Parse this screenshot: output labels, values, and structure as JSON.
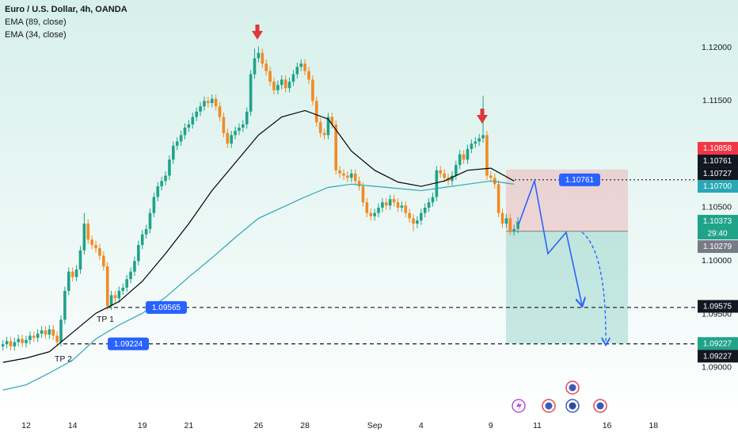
{
  "chart_data": {
    "type": "candlestick",
    "title": "Euro / U.S. Dollar, 4h, OANDA",
    "up_color": "#1fa38a",
    "down_color": "#f08a24",
    "open": [
      1.092,
      1.0922,
      1.0925,
      1.092,
      1.0924,
      1.0927,
      1.0923,
      1.0926,
      1.093,
      1.0928,
      1.0932,
      1.0935,
      1.0931,
      1.0936,
      1.093,
      1.0924,
      1.0945,
      1.0972,
      1.099,
      1.0985,
      1.0992,
      1.101,
      1.1035,
      1.102,
      1.1015,
      1.1012,
      1.1005,
      1.0995,
      1.0958,
      1.0968,
      1.0965,
      1.0972,
      1.0975,
      1.0983,
      1.099,
      1.1,
      1.1015,
      1.1025,
      1.103,
      1.1045,
      1.106,
      1.107,
      1.1075,
      1.108,
      1.1095,
      1.1108,
      1.1112,
      1.1118,
      1.1125,
      1.1128,
      1.1135,
      1.114,
      1.1145,
      1.115,
      1.1148,
      1.1152,
      1.1145,
      1.1135,
      1.112,
      1.111,
      1.1118,
      1.1122,
      1.1125,
      1.1128,
      1.114,
      1.1175,
      1.119,
      1.1195,
      1.1185,
      1.1178,
      1.1168,
      1.116,
      1.1165,
      1.117,
      1.1162,
      1.1168,
      1.1175,
      1.1182,
      1.1185,
      1.1178,
      1.117,
      1.115,
      1.113,
      1.112,
      1.1118,
      1.1135,
      1.1128,
      1.1085,
      1.1082,
      1.108,
      1.1078,
      1.1082,
      1.1075,
      1.107,
      1.1055,
      1.1045,
      1.1042,
      1.1045,
      1.105,
      1.1055,
      1.1052,
      1.1058,
      1.1055,
      1.105,
      1.1052,
      1.1045,
      1.104,
      1.1035,
      1.1038,
      1.1045,
      1.105,
      1.1055,
      1.106,
      1.1085,
      1.1082,
      1.1078,
      1.1075,
      1.108,
      1.109,
      1.11,
      1.1095,
      1.1105,
      1.111,
      1.1112,
      1.1115,
      1.1118,
      1.108,
      1.1078,
      1.1072,
      1.1045,
      1.1035,
      1.104,
      1.1028,
      1.103
    ],
    "high": [
      1.0926,
      1.0929,
      1.0929,
      1.0928,
      1.0931,
      1.0931,
      1.093,
      1.0934,
      1.0934,
      1.0936,
      1.0939,
      1.0939,
      1.094,
      1.094,
      1.0934,
      1.0949,
      1.0976,
      1.0994,
      1.0994,
      1.0996,
      1.1014,
      1.1045,
      1.1039,
      1.1024,
      1.1019,
      1.1016,
      1.1009,
      1.0999,
      1.0972,
      1.0972,
      1.0976,
      1.0979,
      1.0987,
      1.0994,
      1.1004,
      1.1019,
      1.1029,
      1.1034,
      1.1049,
      1.1064,
      1.1074,
      1.1079,
      1.1084,
      1.1099,
      1.1112,
      1.1116,
      1.1122,
      1.1129,
      1.1132,
      1.1139,
      1.1144,
      1.1149,
      1.1154,
      1.1154,
      1.1156,
      1.1156,
      1.1149,
      1.1139,
      1.1124,
      1.1122,
      1.1126,
      1.1129,
      1.1132,
      1.1144,
      1.1179,
      1.1199,
      1.1201,
      1.1199,
      1.1189,
      1.1182,
      1.1172,
      1.1169,
      1.1174,
      1.1174,
      1.1172,
      1.1179,
      1.1186,
      1.1189,
      1.1189,
      1.1182,
      1.1174,
      1.1154,
      1.1134,
      1.1124,
      1.1139,
      1.1139,
      1.1132,
      1.1089,
      1.1086,
      1.1084,
      1.1086,
      1.1086,
      1.1079,
      1.1074,
      1.1059,
      1.1049,
      1.1049,
      1.1054,
      1.1059,
      1.1059,
      1.1062,
      1.1062,
      1.1059,
      1.1056,
      1.1056,
      1.1049,
      1.1044,
      1.1042,
      1.1049,
      1.1054,
      1.1059,
      1.1064,
      1.1089,
      1.1089,
      1.1086,
      1.1082,
      1.1084,
      1.1094,
      1.1104,
      1.1104,
      1.1109,
      1.1114,
      1.1116,
      1.1119,
      1.1155,
      1.1122,
      1.1084,
      1.1082,
      1.1076,
      1.1049,
      1.1044,
      1.1044,
      1.1034,
      1.1041
    ],
    "low": [
      1.0916,
      1.0918,
      1.0916,
      1.0916,
      1.092,
      1.0919,
      1.0919,
      1.0922,
      1.0924,
      1.0924,
      1.0928,
      1.0927,
      1.0927,
      1.0926,
      1.092,
      1.092,
      1.0941,
      1.0968,
      1.0981,
      1.0981,
      1.0988,
      1.1006,
      1.1016,
      1.1011,
      1.1008,
      1.1001,
      1.0991,
      1.0954,
      1.0954,
      1.0961,
      1.0961,
      1.0968,
      1.0971,
      1.0979,
      1.0986,
      1.0996,
      1.1011,
      1.1021,
      1.1026,
      1.1041,
      1.1056,
      1.1066,
      1.1071,
      1.1076,
      1.1091,
      1.1104,
      1.1108,
      1.1114,
      1.1121,
      1.1124,
      1.1131,
      1.1136,
      1.1141,
      1.1144,
      1.1144,
      1.1141,
      1.1131,
      1.1116,
      1.1106,
      1.1106,
      1.1114,
      1.1118,
      1.1121,
      1.1124,
      1.1136,
      1.1171,
      1.1186,
      1.1181,
      1.1174,
      1.1164,
      1.1156,
      1.1156,
      1.1161,
      1.1158,
      1.1158,
      1.1164,
      1.1171,
      1.1178,
      1.1174,
      1.1166,
      1.1146,
      1.1126,
      1.1116,
      1.1114,
      1.1114,
      1.1124,
      1.1081,
      1.1078,
      1.1076,
      1.1074,
      1.1074,
      1.1071,
      1.1066,
      1.1051,
      1.1041,
      1.1038,
      1.1038,
      1.1041,
      1.1046,
      1.1048,
      1.1048,
      1.1051,
      1.1046,
      1.1046,
      1.1041,
      1.1036,
      1.1028,
      1.1031,
      1.1034,
      1.1041,
      1.1046,
      1.1051,
      1.1056,
      1.1078,
      1.1074,
      1.1071,
      1.1071,
      1.1076,
      1.1086,
      1.1091,
      1.1091,
      1.1101,
      1.1106,
      1.1108,
      1.1111,
      1.1076,
      1.1074,
      1.1068,
      1.1041,
      1.1031,
      1.1031,
      1.1024,
      1.1024,
      1.1026
    ],
    "close": [
      1.0922,
      1.0925,
      1.092,
      1.0924,
      1.0927,
      1.0923,
      1.0926,
      1.093,
      1.0928,
      1.0932,
      1.0935,
      1.0931,
      1.0936,
      1.093,
      1.0924,
      1.0945,
      1.0972,
      1.099,
      1.0985,
      1.0992,
      1.101,
      1.1035,
      1.102,
      1.1015,
      1.1012,
      1.1005,
      1.0995,
      1.0958,
      1.0968,
      1.0965,
      1.0972,
      1.0975,
      1.0983,
      1.099,
      1.1,
      1.1015,
      1.1025,
      1.103,
      1.1045,
      1.106,
      1.107,
      1.1075,
      1.108,
      1.1095,
      1.1108,
      1.1112,
      1.1118,
      1.1125,
      1.1128,
      1.1135,
      1.114,
      1.1145,
      1.115,
      1.1148,
      1.1152,
      1.1145,
      1.1135,
      1.112,
      1.111,
      1.1118,
      1.1122,
      1.1125,
      1.1128,
      1.114,
      1.1175,
      1.119,
      1.1195,
      1.1185,
      1.1178,
      1.1168,
      1.116,
      1.1165,
      1.117,
      1.1162,
      1.1168,
      1.1175,
      1.1182,
      1.1185,
      1.1178,
      1.117,
      1.115,
      1.113,
      1.112,
      1.1118,
      1.1135,
      1.1128,
      1.1085,
      1.1082,
      1.108,
      1.1078,
      1.1082,
      1.1075,
      1.107,
      1.1055,
      1.1045,
      1.1042,
      1.1045,
      1.105,
      1.1055,
      1.1052,
      1.1058,
      1.1055,
      1.105,
      1.1052,
      1.1045,
      1.104,
      1.1035,
      1.1038,
      1.1045,
      1.105,
      1.1055,
      1.106,
      1.1085,
      1.1082,
      1.1078,
      1.1075,
      1.108,
      1.109,
      1.11,
      1.1095,
      1.1105,
      1.111,
      1.1112,
      1.1115,
      1.1118,
      1.108,
      1.1078,
      1.1072,
      1.1045,
      1.1035,
      1.104,
      1.1028,
      1.103,
      1.1037
    ],
    "series": [
      {
        "name": "EMA (89, close)",
        "color": "#2aa7b5",
        "x": [
          0,
          6,
          12,
          18,
          24,
          30,
          36,
          42,
          48,
          54,
          60,
          66,
          72,
          78,
          84,
          90,
          96,
          102,
          108,
          114,
          120,
          126,
          132
        ],
        "values": [
          1.0879,
          1.0884,
          1.0895,
          1.0907,
          1.0927,
          1.094,
          1.0951,
          1.0966,
          1.0985,
          1.1003,
          1.1022,
          1.104,
          1.105,
          1.106,
          1.1069,
          1.1072,
          1.107,
          1.1068,
          1.1066,
          1.1069,
          1.1072,
          1.1075,
          1.1072
        ]
      },
      {
        "name": "EMA (34, close)",
        "color": "#000000",
        "x": [
          0,
          6,
          12,
          18,
          24,
          30,
          36,
          42,
          48,
          54,
          60,
          66,
          72,
          78,
          84,
          90,
          96,
          102,
          108,
          114,
          120,
          126,
          132
        ],
        "values": [
          1.0905,
          1.0909,
          1.0915,
          1.0933,
          1.0951,
          1.0962,
          1.0981,
          1.1007,
          1.1035,
          1.1066,
          1.1092,
          1.1118,
          1.1135,
          1.1141,
          1.1133,
          1.1103,
          1.1085,
          1.1074,
          1.107,
          1.1075,
          1.1085,
          1.1087,
          1.1075
        ]
      }
    ],
    "xlim": [
      -0.75,
      179.2
    ],
    "xticks": [
      {
        "value": 6,
        "label": "12"
      },
      {
        "value": 18,
        "label": "14"
      },
      {
        "value": 36,
        "label": "19"
      },
      {
        "value": 48,
        "label": "21"
      },
      {
        "value": 66,
        "label": "26"
      },
      {
        "value": 78,
        "label": "28"
      },
      {
        "value": 96,
        "label": "Sep"
      },
      {
        "value": 108,
        "label": "4"
      },
      {
        "value": 126,
        "label": "9"
      },
      {
        "value": 138,
        "label": "11"
      },
      {
        "value": 156,
        "label": "16"
      },
      {
        "value": 168,
        "label": "18"
      }
    ],
    "ylim": [
      1.08583,
      1.12446
    ],
    "yticks": [
      {
        "value": 1.12,
        "label": "1.12000"
      },
      {
        "value": 1.115,
        "label": "1.11500"
      },
      {
        "value": 1.105,
        "label": "1.10500"
      },
      {
        "value": 1.1,
        "label": "1.10000"
      },
      {
        "value": 1.095,
        "label": "1.09500"
      },
      {
        "value": 1.09,
        "label": "1.09000"
      }
    ],
    "price_labels": [
      {
        "value": 1.10858,
        "label": "1.10858",
        "color": "#f23645"
      },
      {
        "value": 1.10761,
        "label": "1.10761",
        "color": "#131722"
      },
      {
        "value": 1.10727,
        "label": "1.10727",
        "color": "#131722"
      },
      {
        "value": 1.107,
        "label": "1.10700",
        "color": "#2aa7b5"
      },
      {
        "value": 1.10373,
        "label": "1.10373",
        "color": "#1fa38a",
        "countdown": "29:40"
      },
      {
        "value": 1.10279,
        "label": "1.10279",
        "color": "#787b86"
      },
      {
        "value": 1.09575,
        "label": "1.09575",
        "color": "#131722"
      },
      {
        "value": 1.09227,
        "label": "1.09227",
        "color": "#1fa38a"
      },
      {
        "value": 1.09227,
        "label": "1.09227",
        "color": "#131722"
      }
    ],
    "levels": [
      {
        "value": 1.10761,
        "label": "1.10761"
      },
      {
        "value": 1.09565,
        "label": "1.09565"
      },
      {
        "value": 1.09224,
        "label": "1.09224"
      }
    ],
    "annotations": [
      "TP 1",
      "TP 2"
    ]
  }
}
